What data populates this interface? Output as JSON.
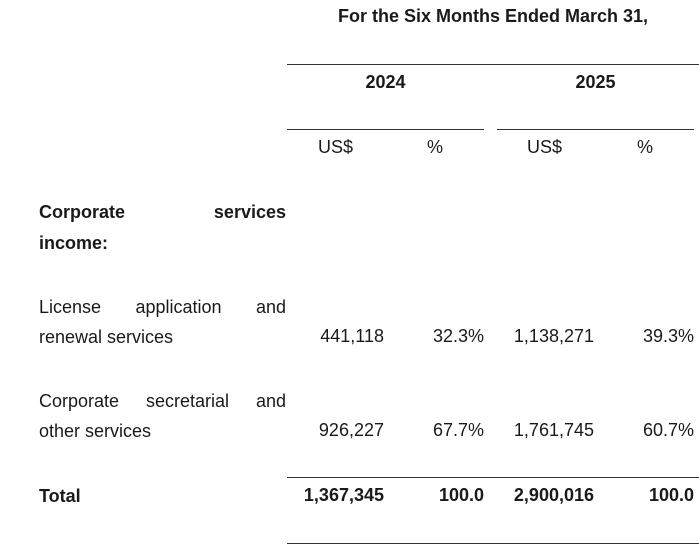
{
  "table": {
    "period_title": "For the Six Months Ended March 31,",
    "years": [
      "2024",
      "2025"
    ],
    "unit_labels": [
      "US$",
      "%",
      "US$",
      "%"
    ],
    "section_header": {
      "line1_words": [
        "Corporate",
        "services"
      ],
      "line2": "income:"
    },
    "rows": [
      {
        "label_line1_words": [
          "License",
          "application",
          "and"
        ],
        "label_line2": "renewal services",
        "values": [
          "441,118",
          "32.3%",
          "1,138,271",
          "39.3%"
        ]
      },
      {
        "label_line1_words": [
          "Corporate",
          "secretarial",
          "and"
        ],
        "label_line2": "other services",
        "values": [
          "926,227",
          "67.7%",
          "1,761,745",
          "60.7%"
        ]
      }
    ],
    "total": {
      "label": "Total",
      "values": [
        "1,367,345",
        "100.0",
        "2,900,016",
        "100.0"
      ]
    }
  }
}
